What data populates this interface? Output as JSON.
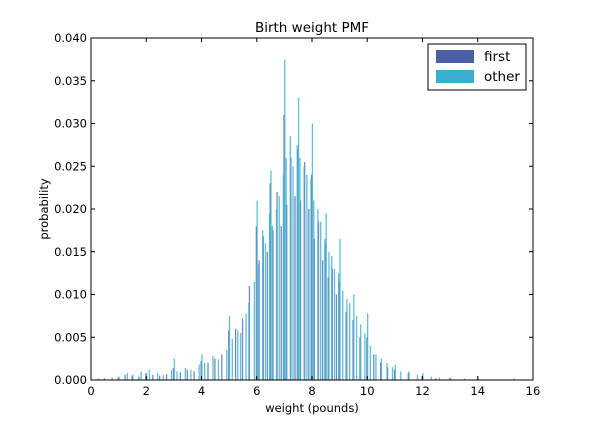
{
  "chart_data": {
    "type": "bar",
    "title": "Birth weight PMF",
    "xlabel": "weight (pounds)",
    "ylabel": "probability",
    "xlim": [
      0,
      16
    ],
    "ylim": [
      0,
      0.04
    ],
    "xticks": [
      0,
      2,
      4,
      6,
      8,
      10,
      12,
      14,
      16
    ],
    "xtick_labels": [
      "0",
      "2",
      "4",
      "6",
      "8",
      "10",
      "12",
      "14",
      "16"
    ],
    "yticks": [
      0,
      0.005,
      0.01,
      0.015,
      0.02,
      0.025,
      0.03,
      0.035,
      0.04
    ],
    "ytick_labels": [
      "0.000",
      "0.005",
      "0.010",
      "0.015",
      "0.020",
      "0.025",
      "0.030",
      "0.035",
      "0.040"
    ],
    "grid": false,
    "legend_position": "top-right",
    "series": [
      {
        "name": "first",
        "color": "#4b5fa8",
        "points": [
          [
            0.5,
            0.0002
          ],
          [
            1.0,
            0.0003
          ],
          [
            1.25,
            0.0006
          ],
          [
            1.5,
            0.0005
          ],
          [
            1.75,
            0.0004
          ],
          [
            2.0,
            0.0008
          ],
          [
            2.25,
            0.0006
          ],
          [
            2.5,
            0.0005
          ],
          [
            2.75,
            0.0007
          ],
          [
            3.0,
            0.0014
          ],
          [
            3.25,
            0.0009
          ],
          [
            3.5,
            0.0012
          ],
          [
            3.75,
            0.001
          ],
          [
            4.0,
            0.0022
          ],
          [
            4.25,
            0.002
          ],
          [
            4.5,
            0.0025
          ],
          [
            4.75,
            0.003
          ],
          [
            5.0,
            0.0058
          ],
          [
            5.25,
            0.006
          ],
          [
            5.5,
            0.0072
          ],
          [
            5.75,
            0.011
          ],
          [
            6.0,
            0.018
          ],
          [
            6.1,
            0.014
          ],
          [
            6.25,
            0.0168
          ],
          [
            6.4,
            0.015
          ],
          [
            6.5,
            0.023
          ],
          [
            6.6,
            0.0175
          ],
          [
            6.75,
            0.022
          ],
          [
            6.9,
            0.018
          ],
          [
            7.0,
            0.031
          ],
          [
            7.1,
            0.0205
          ],
          [
            7.25,
            0.026
          ],
          [
            7.4,
            0.0215
          ],
          [
            7.5,
            0.027
          ],
          [
            7.6,
            0.021
          ],
          [
            7.75,
            0.0255
          ],
          [
            7.9,
            0.02
          ],
          [
            8.0,
            0.024
          ],
          [
            8.1,
            0.0165
          ],
          [
            8.25,
            0.0185
          ],
          [
            8.4,
            0.014
          ],
          [
            8.5,
            0.016
          ],
          [
            8.6,
            0.012
          ],
          [
            8.75,
            0.013
          ],
          [
            8.9,
            0.01
          ],
          [
            9.0,
            0.0115
          ],
          [
            9.25,
            0.008
          ],
          [
            9.5,
            0.007
          ],
          [
            9.75,
            0.005
          ],
          [
            10.0,
            0.005
          ],
          [
            10.25,
            0.003
          ],
          [
            10.5,
            0.002
          ],
          [
            10.75,
            0.0015
          ],
          [
            11.0,
            0.0012
          ],
          [
            11.5,
            0.0008
          ],
          [
            12.0,
            0.0005
          ],
          [
            12.5,
            0.0002
          ],
          [
            13.0,
            0.0002
          ]
        ]
      },
      {
        "name": "other",
        "color": "#3aaed0",
        "points": [
          [
            0.25,
            0.0002
          ],
          [
            0.75,
            0.0003
          ],
          [
            1.0,
            0.0004
          ],
          [
            1.3,
            0.0008
          ],
          [
            1.5,
            0.0006
          ],
          [
            1.8,
            0.001
          ],
          [
            2.0,
            0.0008
          ],
          [
            2.1,
            0.0012
          ],
          [
            2.4,
            0.0008
          ],
          [
            2.6,
            0.0006
          ],
          [
            2.9,
            0.0012
          ],
          [
            3.0,
            0.0025
          ],
          [
            3.1,
            0.001
          ],
          [
            3.4,
            0.0014
          ],
          [
            3.6,
            0.0012
          ],
          [
            3.9,
            0.0018
          ],
          [
            4.0,
            0.003
          ],
          [
            4.1,
            0.002
          ],
          [
            4.4,
            0.0028
          ],
          [
            4.6,
            0.0024
          ],
          [
            4.9,
            0.0035
          ],
          [
            5.0,
            0.0075
          ],
          [
            5.1,
            0.0048
          ],
          [
            5.3,
            0.0058
          ],
          [
            5.4,
            0.0055
          ],
          [
            5.6,
            0.0078
          ],
          [
            5.7,
            0.009
          ],
          [
            5.9,
            0.0115
          ],
          [
            6.0,
            0.021
          ],
          [
            6.05,
            0.0135
          ],
          [
            6.2,
            0.0175
          ],
          [
            6.3,
            0.016
          ],
          [
            6.45,
            0.0195
          ],
          [
            6.5,
            0.0245
          ],
          [
            6.55,
            0.018
          ],
          [
            6.7,
            0.02
          ],
          [
            6.8,
            0.0215
          ],
          [
            6.95,
            0.024
          ],
          [
            7.0,
            0.0375
          ],
          [
            7.05,
            0.026
          ],
          [
            7.2,
            0.0285
          ],
          [
            7.3,
            0.025
          ],
          [
            7.45,
            0.0275
          ],
          [
            7.5,
            0.033
          ],
          [
            7.55,
            0.026
          ],
          [
            7.7,
            0.025
          ],
          [
            7.8,
            0.024
          ],
          [
            7.95,
            0.0235
          ],
          [
            8.0,
            0.03
          ],
          [
            8.05,
            0.021
          ],
          [
            8.2,
            0.02
          ],
          [
            8.3,
            0.0185
          ],
          [
            8.45,
            0.0165
          ],
          [
            8.5,
            0.0195
          ],
          [
            8.6,
            0.015
          ],
          [
            8.7,
            0.0145
          ],
          [
            8.8,
            0.013
          ],
          [
            8.95,
            0.0125
          ],
          [
            9.0,
            0.0165
          ],
          [
            9.1,
            0.0105
          ],
          [
            9.25,
            0.0095
          ],
          [
            9.35,
            0.009
          ],
          [
            9.5,
            0.01
          ],
          [
            9.6,
            0.0075
          ],
          [
            9.75,
            0.0065
          ],
          [
            9.9,
            0.0055
          ],
          [
            10.0,
            0.0078
          ],
          [
            10.1,
            0.004
          ],
          [
            10.3,
            0.003
          ],
          [
            10.5,
            0.0025
          ],
          [
            10.7,
            0.002
          ],
          [
            10.9,
            0.0015
          ],
          [
            11.0,
            0.0018
          ],
          [
            11.2,
            0.001
          ],
          [
            11.5,
            0.001
          ],
          [
            11.8,
            0.0006
          ],
          [
            12.0,
            0.0008
          ],
          [
            12.3,
            0.0004
          ],
          [
            12.6,
            0.0003
          ],
          [
            13.0,
            0.0003
          ],
          [
            13.5,
            0.0002
          ],
          [
            14.0,
            0.0002
          ],
          [
            15.3,
            0.0002
          ]
        ]
      }
    ]
  }
}
